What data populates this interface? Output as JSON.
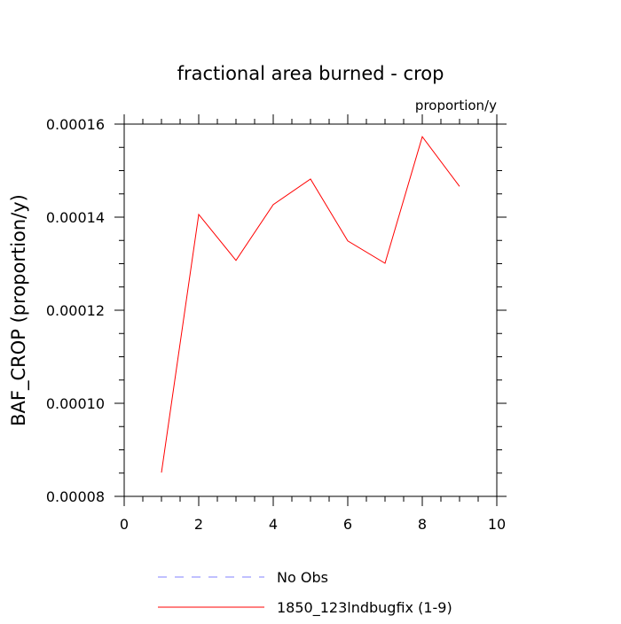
{
  "chart_data": {
    "type": "line",
    "title": "fractional area burned - crop",
    "units_label": "proportion/y",
    "ylabel": "BAF_CROP  (proportion/y)",
    "xlabel": "",
    "xlim": [
      0,
      10
    ],
    "ylim": [
      8e-05,
      0.00016
    ],
    "x_ticks": [
      0,
      2,
      4,
      6,
      8,
      10
    ],
    "x_tick_labels": [
      "0",
      "2",
      "4",
      "6",
      "8",
      "10"
    ],
    "y_ticks": [
      8e-05,
      0.0001,
      0.00012,
      0.00014,
      0.00016
    ],
    "y_tick_labels": [
      "0.00008",
      "0.00010",
      "0.00012",
      "0.00014",
      "0.00016"
    ],
    "grid": false,
    "legend_position": "bottom",
    "series": [
      {
        "name": "1850_123lndbugfix (1-9)",
        "color": "#ff0000",
        "dash": "solid",
        "x": [
          1,
          2,
          3,
          4,
          5,
          6,
          7,
          8,
          9
        ],
        "y": [
          8.51e-05,
          0.0001406,
          0.0001307,
          0.0001427,
          0.0001482,
          0.0001349,
          0.0001301,
          0.0001573,
          0.0001466
        ]
      }
    ],
    "legend": [
      {
        "name": "No Obs",
        "color": "#8080ff",
        "dash": "dashed"
      },
      {
        "name": "1850_123lndbugfix (1-9)",
        "color": "#ff0000",
        "dash": "solid"
      }
    ]
  }
}
